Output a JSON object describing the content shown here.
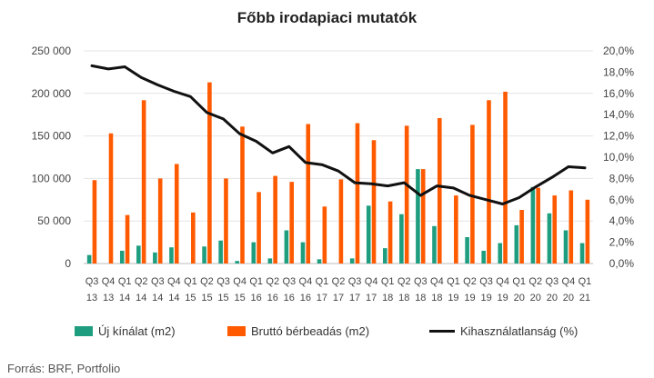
{
  "chart_data": {
    "type": "bar",
    "title": "Főbb irodapiaci mutatók",
    "categories": [
      [
        "Q3",
        "13"
      ],
      [
        "Q4",
        "13"
      ],
      [
        "Q1",
        "14"
      ],
      [
        "Q2",
        "14"
      ],
      [
        "Q3",
        "14"
      ],
      [
        "Q4",
        "14"
      ],
      [
        "Q1",
        "15"
      ],
      [
        "Q2",
        "15"
      ],
      [
        "Q3",
        "15"
      ],
      [
        "Q4",
        "15"
      ],
      [
        "Q1",
        "16"
      ],
      [
        "Q2",
        "16"
      ],
      [
        "Q3",
        "16"
      ],
      [
        "Q4",
        "16"
      ],
      [
        "Q1",
        "17"
      ],
      [
        "Q2",
        "17"
      ],
      [
        "Q3",
        "17"
      ],
      [
        "Q4",
        "17"
      ],
      [
        "Q1",
        "18"
      ],
      [
        "Q2",
        "18"
      ],
      [
        "Q3",
        "18"
      ],
      [
        "Q4",
        "18"
      ],
      [
        "Q1",
        "19"
      ],
      [
        "Q2",
        "19"
      ],
      [
        "Q3",
        "19"
      ],
      [
        "Q4",
        "19"
      ],
      [
        "Q1",
        "20"
      ],
      [
        "Q2",
        "20"
      ],
      [
        "Q3",
        "20"
      ],
      [
        "Q4",
        "20"
      ],
      [
        "Q1",
        "21"
      ]
    ],
    "series": [
      {
        "name": "Új kínálat (m2)",
        "type": "bar",
        "axis": "left",
        "color": "#1f9e7f",
        "values": [
          10000,
          0,
          15000,
          21000,
          13000,
          19000,
          0,
          20000,
          27000,
          3000,
          25000,
          6000,
          39000,
          25000,
          5000,
          0,
          6000,
          68000,
          18000,
          58000,
          111000,
          44000,
          0,
          31000,
          15000,
          24000,
          45000,
          90000,
          59000,
          39000,
          24000
        ]
      },
      {
        "name": "Bruttó bérbeadás (m2)",
        "type": "bar",
        "axis": "left",
        "color": "#ff5a00",
        "values": [
          98000,
          153000,
          57000,
          192000,
          100000,
          117000,
          60000,
          213000,
          100000,
          161000,
          84000,
          103000,
          96000,
          164000,
          67000,
          99000,
          165000,
          145000,
          73000,
          162000,
          111000,
          171000,
          80000,
          163000,
          192000,
          202000,
          63000,
          89000,
          80000,
          86000,
          75000
        ]
      },
      {
        "name": "Kihasználatlanság (%)",
        "type": "line",
        "axis": "right",
        "color": "#111111",
        "values": [
          18.6,
          18.3,
          18.5,
          17.5,
          16.8,
          16.2,
          15.7,
          14.2,
          13.6,
          12.2,
          11.5,
          10.4,
          11.0,
          9.5,
          9.3,
          8.7,
          7.6,
          7.5,
          7.3,
          7.6,
          6.4,
          7.3,
          7.1,
          6.4,
          6.0,
          5.6,
          6.2,
          7.2,
          8.1,
          9.1,
          9.0
        ]
      }
    ],
    "y_left": {
      "ylim": [
        0,
        250000
      ],
      "ticks": [
        0,
        50000,
        100000,
        150000,
        200000,
        250000
      ],
      "tick_labels": [
        "0",
        "50 000",
        "100 000",
        "150 000",
        "200 000",
        "250 000"
      ]
    },
    "y_right": {
      "ylim": [
        0,
        20
      ],
      "ticks": [
        0,
        2,
        4,
        6,
        8,
        10,
        12,
        14,
        16,
        18,
        20
      ],
      "tick_labels": [
        "0,0%",
        "2,0%",
        "4,0%",
        "6,0%",
        "8,0%",
        "10,0%",
        "12,0%",
        "14,0%",
        "16,0%",
        "18,0%",
        "20,0%"
      ]
    },
    "grid": true,
    "legend_position": "bottom"
  },
  "source": "Forrás: BRF, Portfolio"
}
